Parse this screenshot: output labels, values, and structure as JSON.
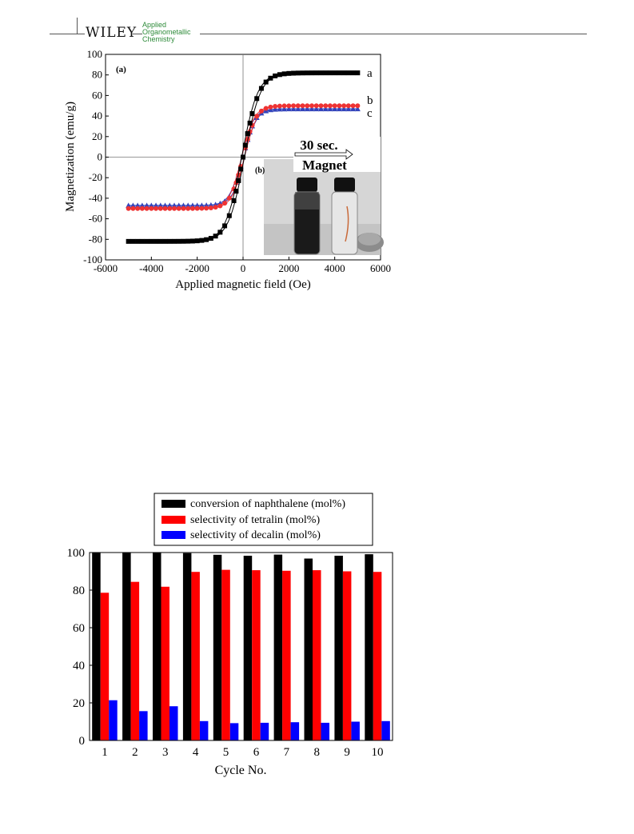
{
  "header": {
    "publisher": "WILEY",
    "journal_lines": [
      "Applied",
      "Organometallic",
      "Chemistry"
    ],
    "accent_color": "#e23b3b",
    "journal_color": "#2e8b3a"
  },
  "chart_data": [
    {
      "type": "line",
      "panel_label": "(a)",
      "xlabel": "Applied magnetic field (Oe)",
      "ylabel": "Magnetization (emu/g)",
      "xlim": [
        -6000,
        6000
      ],
      "ylim": [
        -100,
        100
      ],
      "xticks": [
        "-6000",
        "-4000",
        "-2000",
        "0",
        "2000",
        "4000",
        "6000"
      ],
      "yticks": [
        "-100",
        "-80",
        "-60",
        "-40",
        "-20",
        "0",
        "20",
        "40",
        "60",
        "80",
        "100"
      ],
      "series": [
        {
          "name": "a",
          "color": "#000000",
          "marker": "square",
          "Ms": 82,
          "x0": 700
        },
        {
          "name": "b",
          "color": "#ee3333",
          "marker": "circle",
          "Ms": 50,
          "x0": 550
        },
        {
          "name": "c",
          "color": "#3344bb",
          "marker": "triangle",
          "Ms": 47,
          "x0": 520
        }
      ],
      "inset": {
        "label": "(b)",
        "text_top": "30 sec.",
        "text_bottom": "Magnet"
      }
    },
    {
      "type": "bar",
      "categories": [
        "1",
        "2",
        "3",
        "4",
        "5",
        "6",
        "7",
        "8",
        "9",
        "10"
      ],
      "xlabel": "Cycle No.",
      "ylabel": "",
      "ylim": [
        0,
        100
      ],
      "yticks": [
        "0",
        "20",
        "40",
        "60",
        "80",
        "100"
      ],
      "series": [
        {
          "name": "conversion of naphthalene (mol%)",
          "color": "#000000",
          "values": [
            99.8,
            99.9,
            99.9,
            99.7,
            98.8,
            98.3,
            98.9,
            96.8,
            98.3,
            99.1
          ]
        },
        {
          "name": "selectivity of tetralin (mol%)",
          "color": "#ff0000",
          "values": [
            78.6,
            84.4,
            81.8,
            89.7,
            90.8,
            90.6,
            90.3,
            90.6,
            90.0,
            89.7
          ]
        },
        {
          "name": "selectivity of decalin (mol%)",
          "color": "#0000ff",
          "values": [
            21.4,
            15.6,
            18.2,
            10.3,
            9.2,
            9.4,
            9.7,
            9.4,
            10.0,
            10.3
          ]
        }
      ]
    }
  ]
}
